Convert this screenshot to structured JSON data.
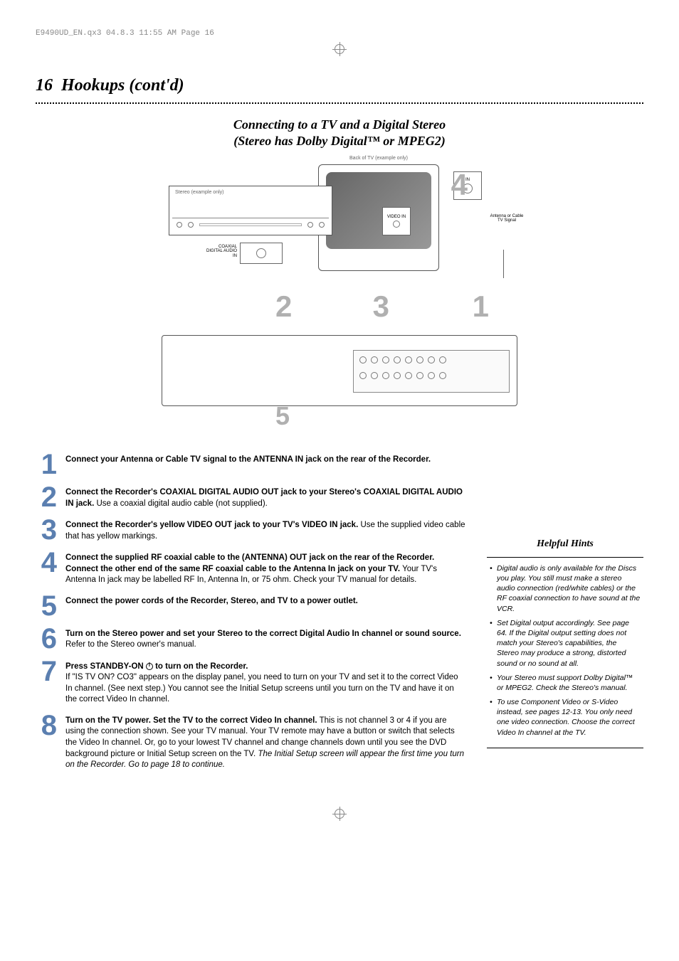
{
  "meta": {
    "header": "E9490UD_EN.qx3  04.8.3  11:55 AM  Page 16"
  },
  "page": {
    "number": "16",
    "title": "Hookups (cont'd)",
    "subtitle_line1": "Connecting to a TV and a Digital Stereo",
    "subtitle_line2": "(Stereo has Dolby Digital™ or MPEG2)"
  },
  "diagram": {
    "tv_label": "Back of TV (example only)",
    "stereo_label": "Stereo (example only)",
    "coax_in_label": "COAXIAL DIGITAL AUDIO IN",
    "video_in_label": "VIDEO IN",
    "tv_in_label": "IN",
    "antenna_label": "Antenna or Cable TV Signal",
    "big_numbers": {
      "n1": "1",
      "n2": "2",
      "n3": "3",
      "n4": "4",
      "n5": "5"
    }
  },
  "colors": {
    "step_number": "#5b7fb0",
    "diagram_number": "#b0b0b0",
    "text": "#000000",
    "background": "#ffffff",
    "meta_text": "#888888"
  },
  "typography": {
    "title_fontsize": 24,
    "subtitle_fontsize": 18,
    "step_num_fontsize": 40,
    "body_fontsize": 11.5,
    "hints_fontsize": 10.5,
    "diagram_num_fontsize": 42
  },
  "steps": [
    {
      "num": "1",
      "bold": "Connect your Antenna or Cable TV signal to the ANTENNA IN jack on the rear of the Recorder.",
      "rest": ""
    },
    {
      "num": "2",
      "bold": "Connect the Recorder's COAXIAL DIGITAL AUDIO OUT jack to your Stereo's COAXIAL DIGITAL AUDIO IN jack.",
      "rest": "  Use a coaxial digital audio cable (not supplied)."
    },
    {
      "num": "3",
      "bold": "Connect the Recorder's yellow VIDEO OUT jack to your TV's VIDEO IN jack.",
      "rest": " Use the supplied video cable that has yellow markings."
    },
    {
      "num": "4",
      "bold": "Connect the supplied RF coaxial cable to the (ANTENNA) OUT jack on the rear of the Recorder.  Connect the other end of the same RF coaxial cable to the Antenna In jack on your TV.",
      "rest": " Your TV's Antenna In jack may be labelled RF In, Antenna In, or 75 ohm. Check your TV manual for details."
    },
    {
      "num": "5",
      "bold": "Connect the power cords of the Recorder, Stereo, and TV to a power outlet.",
      "rest": ""
    },
    {
      "num": "6",
      "bold": "Turn on the Stereo power and set your Stereo to the correct Digital Audio In channel or sound source.",
      "rest": " Refer to the Stereo owner's manual."
    },
    {
      "num": "7",
      "bold_pre": "Press STANDBY-ON ",
      "bold_post": " to turn on the Recorder.",
      "rest": "If \"IS TV ON? CO3\" appears on the display panel, you need to turn on your TV and set it to the correct Video In channel. (See next step.) You cannot see the Initial Setup screens until you turn on the TV and have it on the correct Video In channel.",
      "has_power_icon": true
    },
    {
      "num": "8",
      "bold": "Turn on the TV power. Set the TV to the correct Video In channel.",
      "rest": " This is not channel 3 or 4 if you are using the connection shown. See your TV manual. Your TV remote may have a button or switch that selects the Video In channel. Or, go to your lowest TV channel and change channels down until you see the DVD background picture or Initial Setup screen on the TV.  ",
      "italic_tail": "The Initial Setup screen will appear the first time you turn on the Recorder. Go to page 18 to continue."
    }
  ],
  "hints": {
    "title": "Helpful Hints",
    "items": [
      "Digital audio is only available for the Discs you play. You still must make a stereo audio connection (red/white cables) or the RF coaxial connection to have sound at the VCR.",
      "Set Digital output accordingly. See page 64. If the Digital output setting does not match your Stereo's capabilities, the Stereo may produce a strong, distorted sound or no sound at all.",
      "Your Stereo must support Dolby Digital™ or MPEG2. Check the Stereo's manual.",
      "To use Component Video or S-Video instead, see pages 12-13. You only need one video connection. Choose the correct Video In channel at the TV."
    ]
  }
}
